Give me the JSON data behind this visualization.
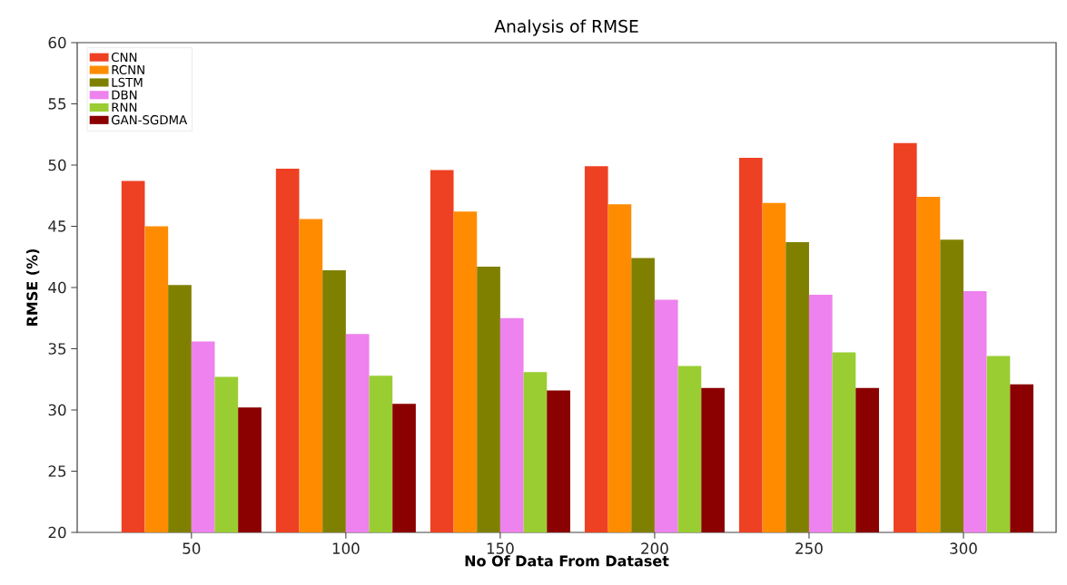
{
  "chart_data": {
    "type": "bar",
    "title": "Analysis of RMSE",
    "xlabel": "No Of Data From Dataset",
    "ylabel": "RMSE (%)",
    "categories": [
      "50",
      "100",
      "150",
      "200",
      "250",
      "300"
    ],
    "series": [
      {
        "name": "CNN",
        "color": "#ee4123",
        "values": [
          48.7,
          49.7,
          49.6,
          49.9,
          50.6,
          51.8
        ]
      },
      {
        "name": "RCNN",
        "color": "#ff8c00",
        "values": [
          45.0,
          45.6,
          46.2,
          46.8,
          46.9,
          47.4
        ]
      },
      {
        "name": "LSTM",
        "color": "#808000",
        "values": [
          40.2,
          41.4,
          41.7,
          42.4,
          43.7,
          43.9
        ]
      },
      {
        "name": "DBN",
        "color": "#ee82ee",
        "values": [
          35.6,
          36.2,
          37.5,
          39.0,
          39.4,
          39.7
        ]
      },
      {
        "name": "RNN",
        "color": "#9acd32",
        "values": [
          32.7,
          32.8,
          33.1,
          33.6,
          34.7,
          34.4
        ]
      },
      {
        "name": "GAN-SGDMA",
        "color": "#8b0000",
        "values": [
          30.2,
          30.5,
          31.6,
          31.8,
          31.8,
          32.1
        ]
      }
    ],
    "ylim": [
      20,
      60
    ],
    "yticks": [
      20,
      25,
      30,
      35,
      40,
      45,
      50,
      55,
      60
    ],
    "grid": false,
    "legend": "top left"
  }
}
